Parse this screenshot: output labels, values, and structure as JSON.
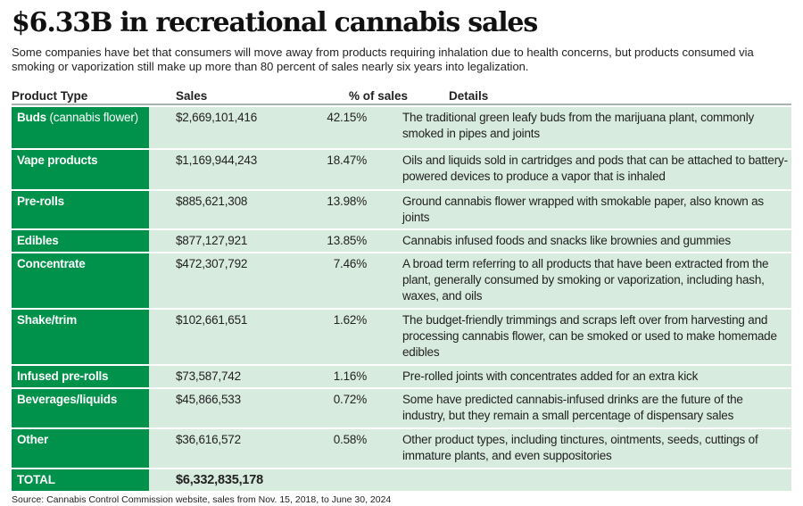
{
  "title": "$6.33B in recreational cannabis sales",
  "subtitle": "Some companies have bet that consumers will move away from products requiring inhalation due to health concerns, but products consumed via smoking or vaporization still make up more than 80 percent of sales nearly six years into legalization.",
  "source": "Source: Cannabis Control Commission website, sales from Nov. 15, 2018, to June 30, 2024",
  "colors": {
    "label_bg": "#00924a",
    "row_bg": "#d8ebdf"
  },
  "chart_data": {
    "type": "table",
    "columns": [
      "Product Type",
      "Sales",
      "% of sales",
      "Details"
    ],
    "rows": [
      {
        "type": "Buds",
        "type_note": "(cannabis flower)",
        "sales": "$2,669,101,416",
        "pct": "42.15%",
        "details": "The traditional green leafy buds from the marijuana plant, commonly smoked in pipes and joints"
      },
      {
        "type": "Vape products",
        "sales": "$1,169,944,243",
        "pct": "18.47%",
        "details": "Oils and liquids sold in cartridges and pods that can be attached to battery-powered devices to produce a vapor that is inhaled"
      },
      {
        "type": "Pre-rolls",
        "sales": "$885,621,308",
        "pct": "13.98%",
        "details": "Ground cannabis flower wrapped with smokable paper, also known as joints"
      },
      {
        "type": "Edibles",
        "sales": "$877,127,921",
        "pct": "13.85%",
        "details": "Cannabis infused foods and snacks like brownies and gummies"
      },
      {
        "type": "Concentrate",
        "sales": "$472,307,792",
        "pct": "7.46%",
        "details": "A broad term referring to all products that have been extracted from the plant, generally consumed by smoking or vaporization, including hash, waxes, and oils"
      },
      {
        "type": "Shake/trim",
        "sales": "$102,661,651",
        "pct": "1.62%",
        "details": "The budget-friendly trimmings and scraps left over from harvesting and processing cannabis flower, can be smoked or used to make homemade edibles"
      },
      {
        "type": "Infused pre-rolls",
        "sales": "$73,587,742",
        "pct": "1.16%",
        "details": "Pre-rolled joints with concentrates added for an extra kick"
      },
      {
        "type": "Beverages/liquids",
        "sales": "$45,866,533",
        "pct": "0.72%",
        "details": "Some have predicted cannabis-infused drinks are the future of the industry, but they remain a small percentage of dispensary sales"
      },
      {
        "type": "Other",
        "sales": "$36,616,572",
        "pct": "0.58%",
        "details": "Other product types, including tinctures, ointments, seeds, cuttings of immature plants, and even suppositories"
      }
    ],
    "total": {
      "label": "TOTAL",
      "sales": "$6,332,835,178"
    }
  }
}
